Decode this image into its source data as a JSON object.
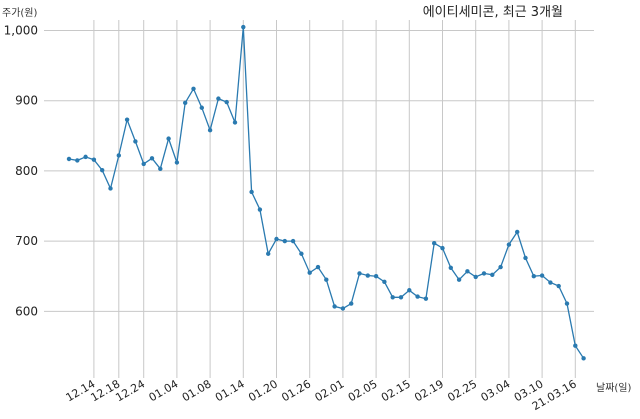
{
  "chart_data": {
    "type": "line",
    "title": "에이티세미콘, 최근 3개월",
    "ylabel": "주가(원)",
    "xlabel": "날짜(일)",
    "ylim": [
      505,
      1015
    ],
    "yticks": [
      600,
      700,
      800,
      900,
      1000
    ],
    "ytick_labels": [
      "600",
      "700",
      "800",
      "900",
      "1,000"
    ],
    "xticks": [
      "12.14",
      "12.18",
      "12.24",
      "01.04",
      "01.08",
      "01.14",
      "01.20",
      "01.26",
      "02.01",
      "02.05",
      "02.15",
      "02.19",
      "02.25",
      "03.04",
      "03.10",
      "21.03.16"
    ],
    "xtick_index": [
      3,
      6,
      9,
      13,
      17,
      21,
      25,
      29,
      33,
      37,
      41,
      45,
      49,
      53,
      57,
      61
    ],
    "grid": true,
    "color": "#2a7ab0",
    "values": [
      817,
      815,
      820,
      816,
      801,
      775,
      822,
      873,
      842,
      810,
      818,
      803,
      846,
      812,
      897,
      917,
      890,
      858,
      903,
      898,
      869,
      1005,
      770,
      745,
      682,
      703,
      700,
      700,
      682,
      655,
      663,
      645,
      607,
      604,
      611,
      654,
      651,
      650,
      642,
      620,
      620,
      630,
      621,
      618,
      697,
      690,
      662,
      645,
      657,
      649,
      654,
      652,
      663,
      695,
      713,
      676,
      650,
      651,
      641,
      636,
      611,
      551,
      533
    ]
  }
}
